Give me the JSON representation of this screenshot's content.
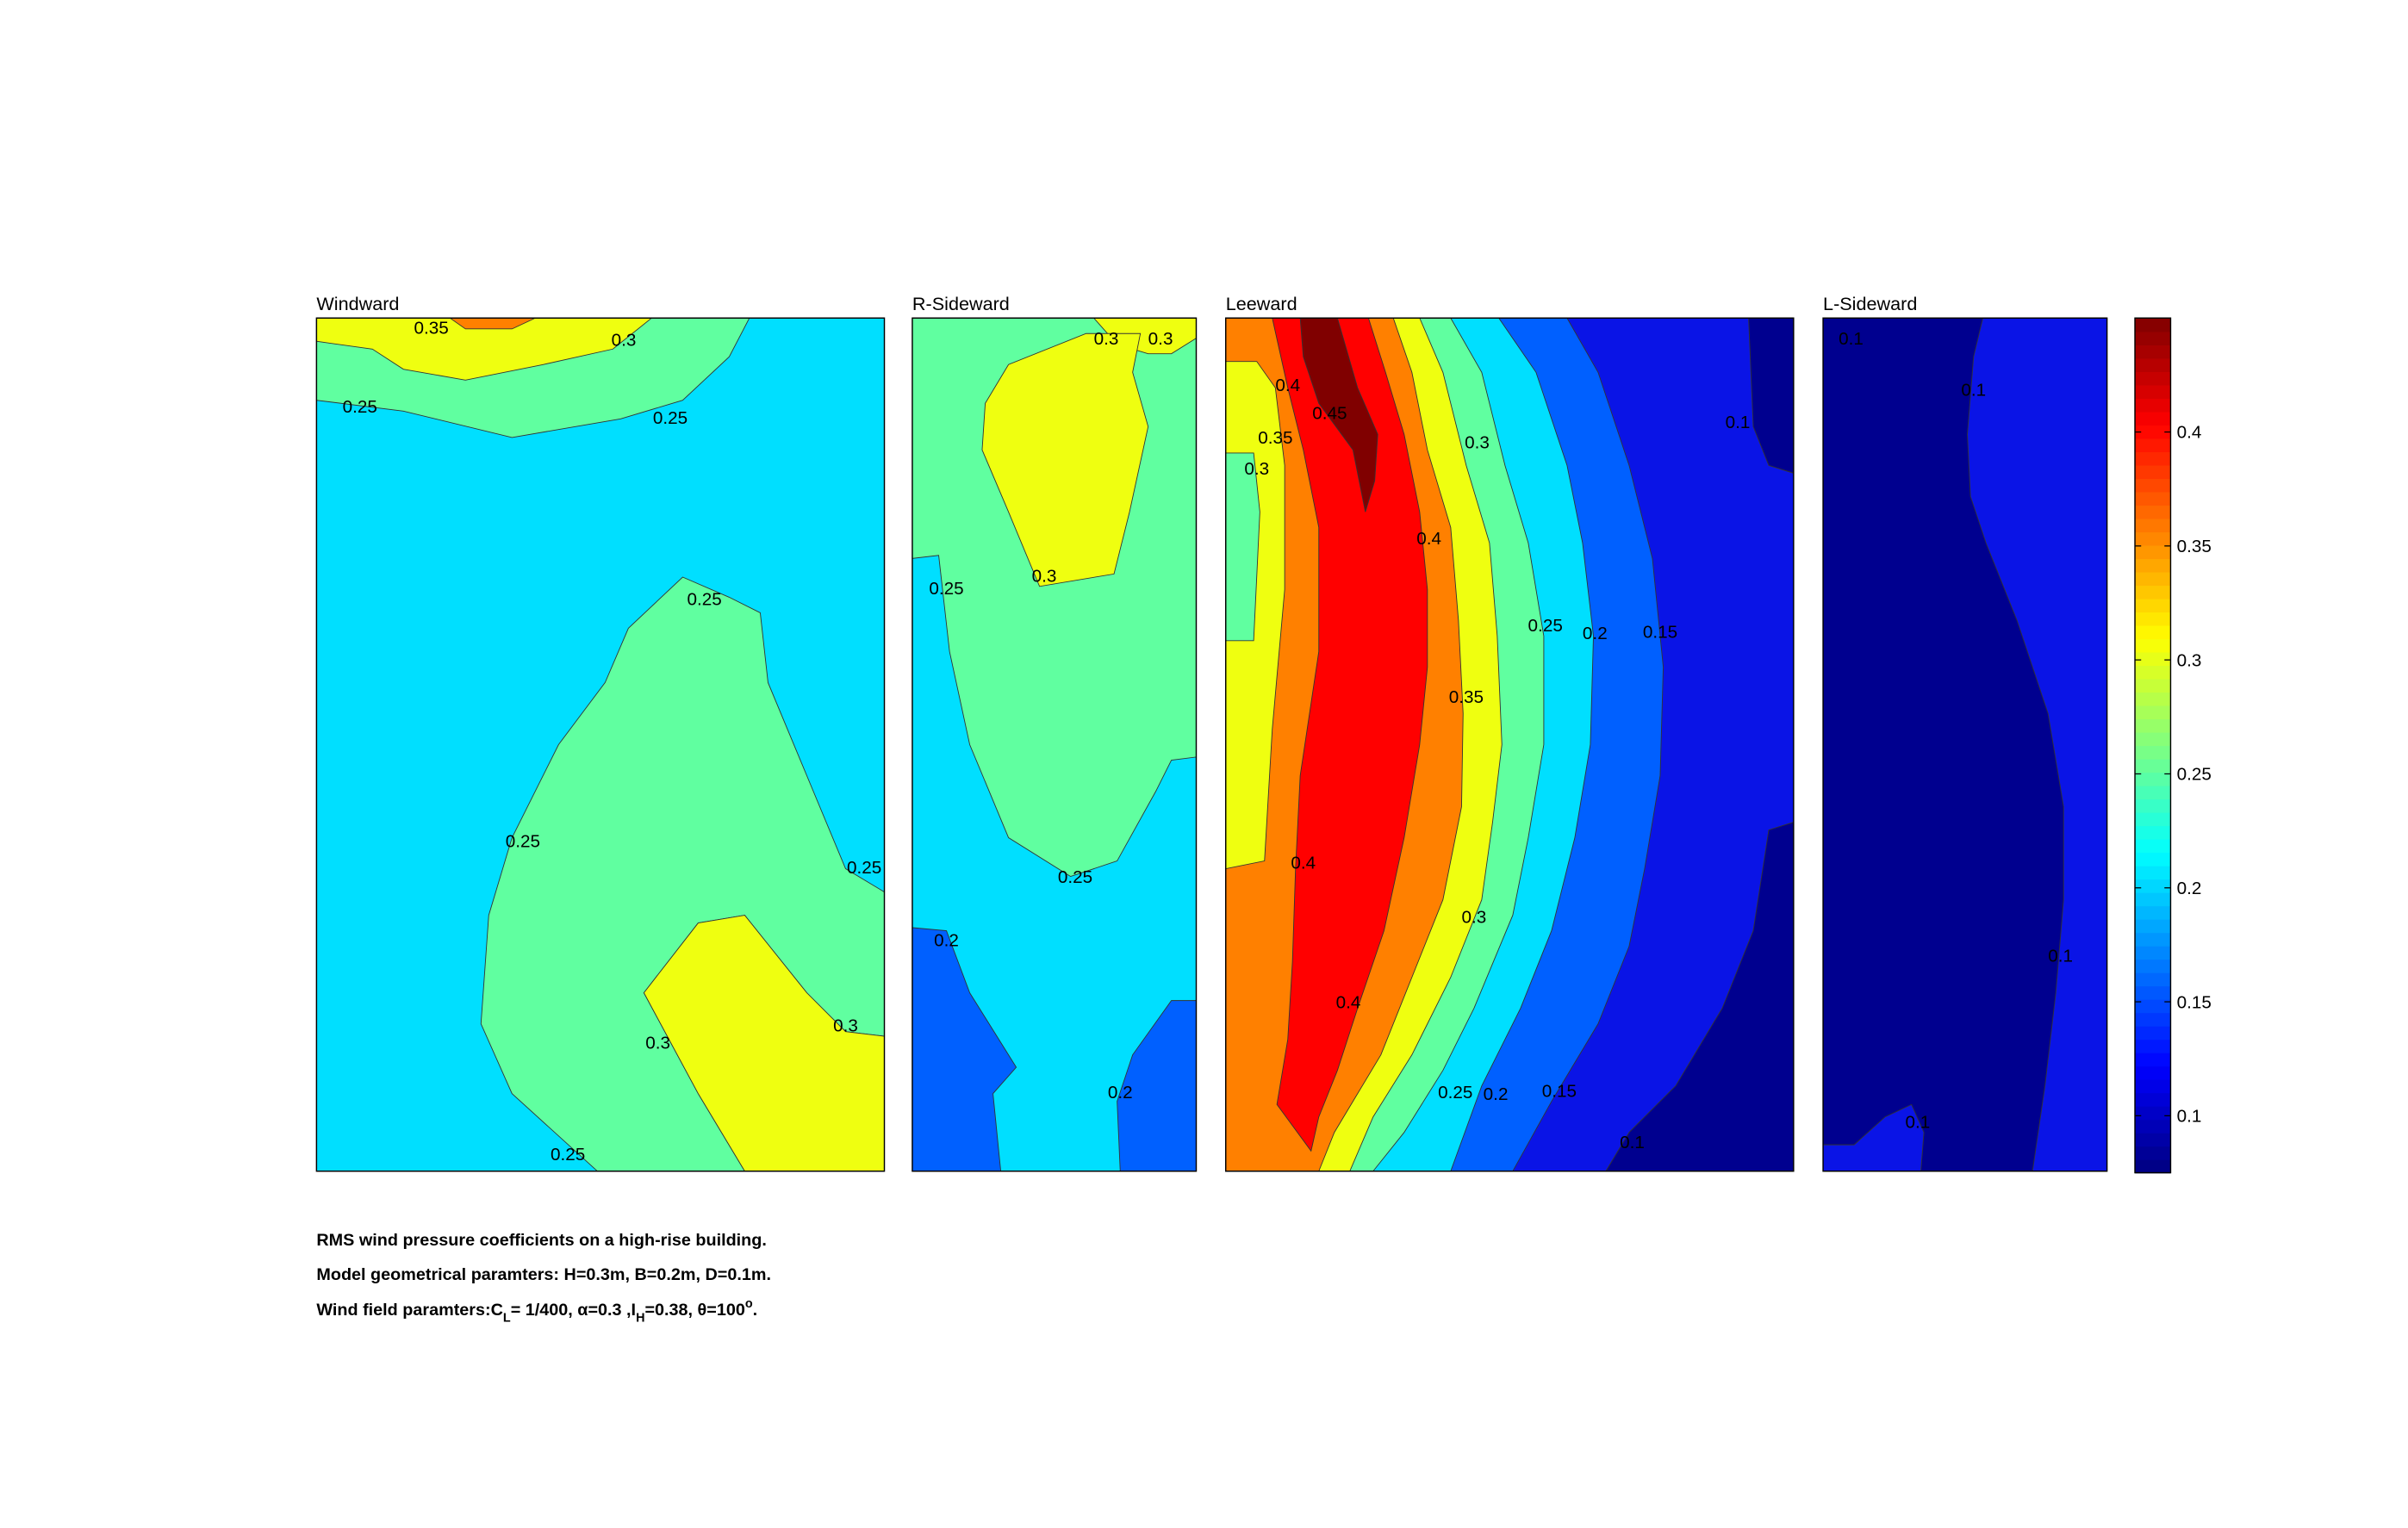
{
  "chart_data": {
    "type": "contour",
    "panels": [
      {
        "title": "Windward",
        "contour_labels": [
          0.35,
          0.3,
          0.25,
          0.25,
          0.25,
          0.25,
          0.25,
          0.3,
          0.3,
          0.25
        ]
      },
      {
        "title": "R-Sideward",
        "contour_labels": [
          0.3,
          0.3,
          0.25,
          0.3,
          0.25,
          0.2,
          0.2
        ]
      },
      {
        "title": "Leeward",
        "contour_labels": [
          0.4,
          0.45,
          0.35,
          0.3,
          0.3,
          0.4,
          0.25,
          0.2,
          0.15,
          0.35,
          0.4,
          0.3,
          0.4,
          0.25,
          0.2,
          0.15,
          0.1,
          0.1
        ]
      },
      {
        "title": "L-Sideward",
        "contour_labels": [
          0.1,
          0.1,
          0.1,
          0.1
        ]
      }
    ],
    "band_colors": [
      "#00008f",
      "#0a14e6",
      "#0060ff",
      "#00dfff",
      "#60ffa0",
      "#efff10",
      "#ff8000",
      "#ff0000",
      "#800000"
    ],
    "colormap": "jet",
    "zlim": [
      0.075,
      0.45
    ],
    "zticks": [
      0.1,
      0.15,
      0.2,
      0.25,
      0.3,
      0.35,
      0.4
    ]
  },
  "caption": {
    "line1": "RMS wind pressure coefficients on a high-rise building.",
    "line2": "Model geometrical paramters: H=0.3m, B=0.2m, D=0.1m.",
    "line3": [
      "Wind field paramters:C",
      "L",
      "= 1/400, α=0.3 ,I",
      "H",
      "=0.38, θ=100",
      "o",
      "."
    ]
  }
}
